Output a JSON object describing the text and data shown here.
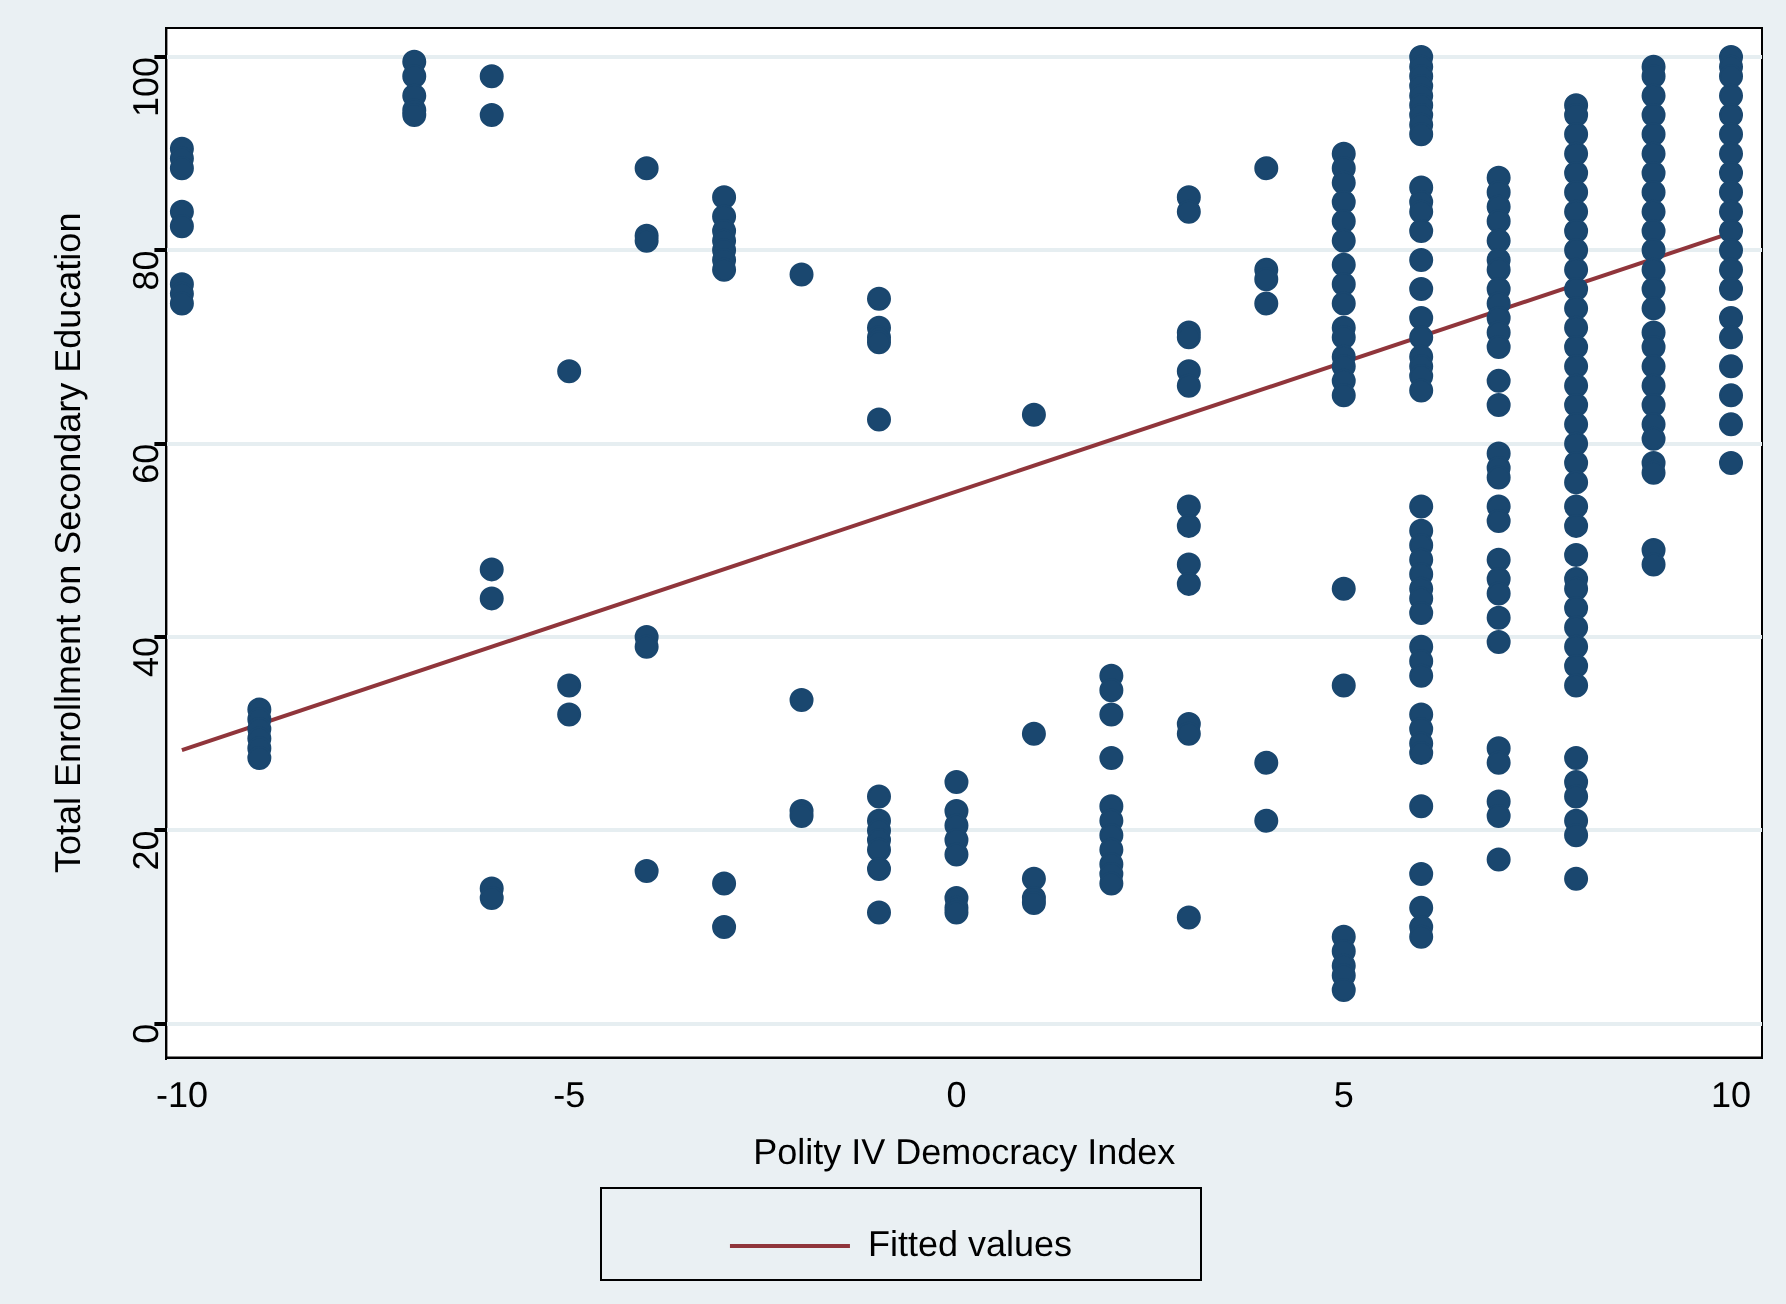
{
  "chart_data": {
    "type": "scatter",
    "xlabel": "Polity IV Democracy Index",
    "ylabel": "Total Enrollment on Secondary Education",
    "xlim": [
      -10.2,
      10.4
    ],
    "ylim": [
      -3.5,
      103
    ],
    "xticks": [
      -10,
      -5,
      0,
      5,
      10
    ],
    "yticks": [
      0,
      20,
      40,
      60,
      80,
      100
    ],
    "grid": "y",
    "legend": "bottom",
    "series": [
      {
        "marker": "circle",
        "color": "#1a476f",
        "x": [
          -10,
          -10,
          -10,
          -10,
          -10,
          -10,
          -10,
          -10,
          -9,
          -9,
          -9,
          -9,
          -9,
          -9,
          -7,
          -7,
          -7,
          -7,
          -7,
          -6,
          -6,
          -6,
          -6,
          -6,
          -6,
          -5,
          -5,
          -5,
          -4,
          -4,
          -4,
          -4,
          -4,
          -4,
          -3,
          -3,
          -3,
          -3,
          -3,
          -3,
          -3,
          -3,
          -3,
          -2,
          -2,
          -2,
          -2,
          -1,
          -1,
          -1,
          -1,
          -1,
          -1,
          -1,
          -1,
          -1,
          -1,
          -1,
          -1,
          0,
          0,
          0,
          0,
          0,
          0,
          0,
          0,
          1,
          1,
          1,
          1,
          1,
          2,
          2,
          2,
          2,
          2,
          2,
          2,
          2,
          2,
          2,
          2,
          3,
          3,
          3,
          3,
          3,
          3,
          3,
          3,
          3,
          3,
          3,
          3,
          3,
          4,
          4,
          4,
          4,
          4,
          4,
          5,
          5,
          5,
          5,
          5,
          5,
          5,
          5,
          5,
          5,
          5,
          5,
          5,
          5,
          5,
          5,
          5,
          5,
          5,
          5,
          5,
          5,
          6,
          6,
          6,
          6,
          6,
          6,
          6,
          6,
          6,
          6,
          6,
          6,
          6,
          6,
          6,
          6,
          6,
          6,
          6,
          6,
          6,
          6,
          6,
          6,
          6,
          6,
          6,
          6,
          6,
          6,
          6,
          6,
          6,
          6,
          6,
          6,
          6,
          6,
          6,
          6,
          6,
          7,
          7,
          7,
          7,
          7,
          7,
          7,
          7,
          7,
          7,
          7,
          7,
          7,
          7,
          7,
          7,
          7,
          7,
          7,
          7,
          7,
          7,
          7,
          7,
          7,
          7,
          7,
          7,
          7,
          8,
          8,
          8,
          8,
          8,
          8,
          8,
          8,
          8,
          8,
          8,
          8,
          8,
          8,
          8,
          8,
          8,
          8,
          8,
          8,
          8,
          8,
          8,
          8,
          8,
          8,
          8,
          8,
          8,
          8,
          8,
          8,
          8,
          8,
          8,
          8,
          8,
          9,
          9,
          9,
          9,
          9,
          9,
          9,
          9,
          9,
          9,
          9,
          9,
          9,
          9,
          9,
          9,
          9,
          9,
          9,
          9,
          9,
          9,
          9,
          9,
          9,
          10,
          10,
          10,
          10,
          10,
          10,
          10,
          10,
          10,
          10,
          10,
          10,
          10,
          10,
          10,
          10,
          10,
          10,
          10,
          10
        ],
        "values": [
          90.5,
          89.5,
          88.5,
          84,
          82.5,
          76.5,
          75.5,
          74.5,
          32.5,
          31.5,
          30.5,
          29.5,
          28.5,
          27.5,
          99.5,
          98,
          96,
          94.5,
          94,
          98,
          94,
          47,
          44,
          14,
          13,
          67.5,
          35,
          32,
          88.5,
          81.5,
          81,
          40,
          39,
          15.8,
          85.5,
          83.5,
          82,
          81,
          80,
          79,
          78,
          14.5,
          10,
          77.5,
          33.5,
          22,
          21.5,
          75,
          72,
          71,
          70.5,
          62.5,
          23.5,
          21,
          20,
          19,
          18,
          16,
          11.5,
          25,
          22,
          20.5,
          19,
          17.5,
          13,
          12,
          11.5,
          63,
          30,
          15,
          13,
          12.5,
          36,
          34.5,
          32,
          27.5,
          22.5,
          21,
          19.5,
          18,
          16.5,
          15.5,
          14.5,
          85.5,
          84,
          71.5,
          71,
          67.5,
          66,
          53.5,
          51.5,
          47.5,
          45.5,
          31,
          30,
          11,
          88.5,
          78,
          77,
          74.5,
          27,
          21,
          90,
          88.5,
          87,
          85,
          83,
          81,
          78.5,
          76.5,
          74.5,
          72,
          71,
          69,
          68,
          66.5,
          65,
          45,
          35,
          9,
          7.5,
          6,
          5,
          3.5,
          100,
          99,
          98,
          97,
          96,
          95,
          94,
          93,
          92,
          86.5,
          85,
          84,
          82,
          79,
          76,
          73,
          71,
          69,
          68,
          67,
          65.5,
          53.5,
          51,
          49.5,
          48,
          46.5,
          45,
          44,
          42.5,
          39,
          37.5,
          36,
          32,
          30.5,
          29,
          28,
          22.5,
          15.5,
          12,
          10,
          9,
          87.5,
          86,
          84.5,
          83,
          81,
          79,
          78,
          76,
          74.5,
          73,
          71.5,
          70,
          66.5,
          64,
          59,
          57.5,
          56.5,
          53.5,
          52,
          48,
          46,
          44.5,
          42,
          39.5,
          28.5,
          27,
          23,
          21.5,
          17,
          95,
          94,
          92,
          90,
          88,
          86,
          84,
          82,
          80,
          78,
          76,
          74,
          72,
          70,
          68,
          66,
          64,
          62,
          60,
          58,
          56,
          53.5,
          51.5,
          48.5,
          46,
          45,
          43,
          41,
          39,
          37,
          35,
          27.5,
          25,
          23.5,
          21,
          19.5,
          15,
          99,
          98,
          96,
          94,
          92,
          90,
          88,
          86,
          84,
          82,
          80,
          78,
          76,
          74,
          71.5,
          70,
          68,
          66,
          64,
          62,
          60.5,
          58,
          57,
          49,
          47.5,
          100,
          99,
          98,
          96,
          94,
          92,
          90,
          88,
          86,
          84,
          82,
          80,
          78,
          76,
          73,
          71,
          68,
          65,
          62,
          58
        ]
      },
      {
        "type": "line",
        "name": "Fitted values",
        "color": "#90353b",
        "x": [
          -10,
          10
        ],
        "values": [
          28.3,
          81.8
        ]
      }
    ]
  }
}
